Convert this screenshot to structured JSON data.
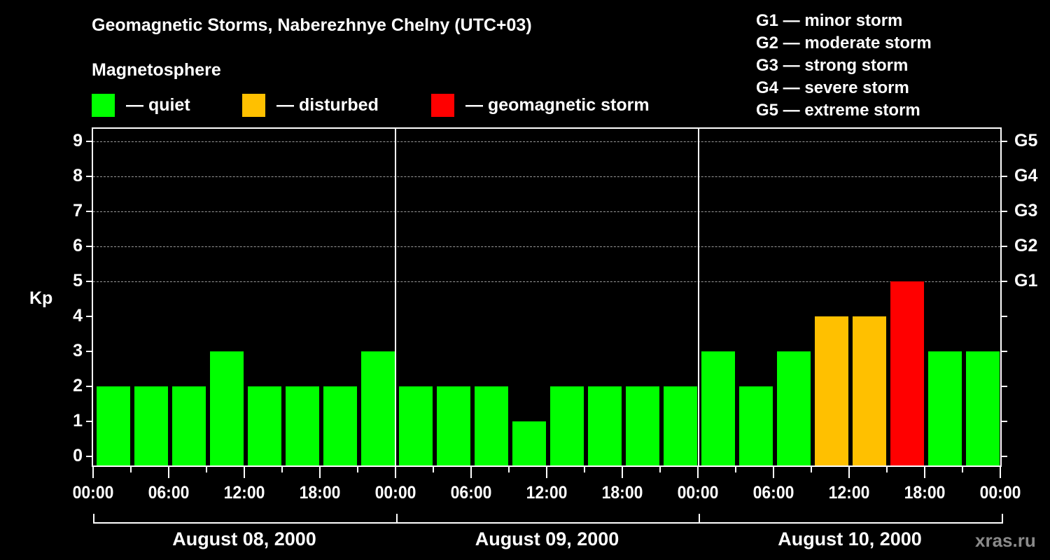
{
  "header": {
    "title": "Geomagnetic Storms, Naberezhnye Chelny (UTC+03)",
    "subtitle": "Magnetosphere"
  },
  "legend": [
    {
      "label": "— quiet",
      "color": "#00ff00"
    },
    {
      "label": "— disturbed",
      "color": "#ffc000"
    },
    {
      "label": "— geomagnetic storm",
      "color": "#ff0000"
    }
  ],
  "g_legend": [
    "G1 — minor storm",
    "G2 — moderate storm",
    "G3 — strong storm",
    "G4 — severe storm",
    "G5 — extreme storm"
  ],
  "axis": {
    "ylabel": "Kp",
    "yticks": [
      "0",
      "1",
      "2",
      "3",
      "4",
      "5",
      "6",
      "7",
      "8",
      "9"
    ],
    "gticks": [
      {
        "kp": 5,
        "label": "G1"
      },
      {
        "kp": 6,
        "label": "G2"
      },
      {
        "kp": 7,
        "label": "G3"
      },
      {
        "kp": 8,
        "label": "G4"
      },
      {
        "kp": 9,
        "label": "G5"
      }
    ],
    "xticks": [
      "00:00",
      "06:00",
      "12:00",
      "18:00",
      "00:00",
      "06:00",
      "12:00",
      "18:00",
      "00:00",
      "06:00",
      "12:00",
      "18:00",
      "00:00"
    ],
    "days": [
      "August 08, 2000",
      "August 09, 2000",
      "August 10, 2000"
    ]
  },
  "watermark": "xras.ru",
  "colors": {
    "quiet": "#00ff00",
    "disturbed": "#ffc000",
    "storm": "#ff0000",
    "background": "#000000",
    "grid": "#9a9a9a"
  },
  "chart_data": {
    "type": "bar",
    "title": "Geomagnetic Storms, Naberezhnye Chelny (UTC+03)",
    "xlabel": "",
    "ylabel": "Kp",
    "ylim": [
      0,
      9
    ],
    "grid": "dashed horizontal lines at Kp 5-9",
    "categories": [
      "Aug 08 00-03",
      "Aug 08 03-06",
      "Aug 08 06-09",
      "Aug 08 09-12",
      "Aug 08 12-15",
      "Aug 08 15-18",
      "Aug 08 18-21",
      "Aug 08 21-24",
      "Aug 09 00-03",
      "Aug 09 03-06",
      "Aug 09 06-09",
      "Aug 09 09-12",
      "Aug 09 12-15",
      "Aug 09 15-18",
      "Aug 09 18-21",
      "Aug 09 21-24",
      "Aug 10 00-03",
      "Aug 10 03-06",
      "Aug 10 06-09",
      "Aug 10 09-12",
      "Aug 10 12-15",
      "Aug 10 15-18",
      "Aug 10 18-21",
      "Aug 10 21-24"
    ],
    "values": [
      2,
      2,
      2,
      3,
      2,
      2,
      2,
      3,
      2,
      2,
      2,
      1,
      2,
      2,
      2,
      2,
      3,
      2,
      3,
      4,
      4,
      5,
      3,
      3
    ],
    "status": [
      "quiet",
      "quiet",
      "quiet",
      "quiet",
      "quiet",
      "quiet",
      "quiet",
      "quiet",
      "quiet",
      "quiet",
      "quiet",
      "quiet",
      "quiet",
      "quiet",
      "quiet",
      "quiet",
      "quiet",
      "quiet",
      "quiet",
      "disturbed",
      "disturbed",
      "storm",
      "quiet",
      "quiet"
    ],
    "legend": [
      "quiet",
      "disturbed",
      "geomagnetic storm"
    ],
    "right_axis": {
      "5": "G1",
      "6": "G2",
      "7": "G3",
      "8": "G4",
      "9": "G5"
    }
  }
}
